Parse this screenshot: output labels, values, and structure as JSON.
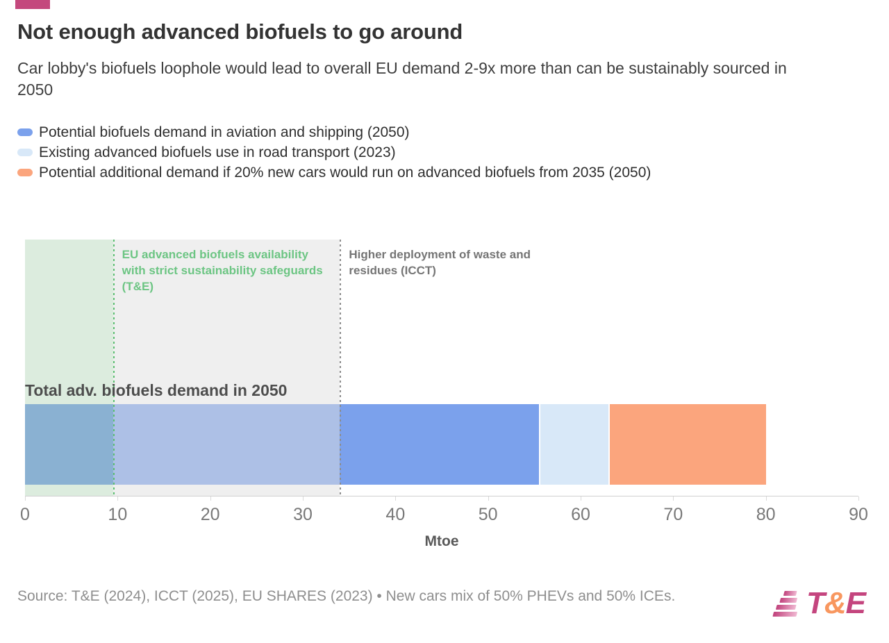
{
  "header": {
    "accent_color": "#c4487d",
    "title": "Not enough advanced biofuels to go around",
    "subtitle": "Car lobby's biofuels loophole would lead to overall EU demand 2-9x more than can be sustainably sourced in 2050"
  },
  "chart_data": {
    "type": "bar",
    "orientation": "horizontal",
    "title": "Not enough advanced biofuels to go around",
    "subtitle": "Car lobby's biofuels loophole would lead to overall EU demand 2-9x more than can be sustainably sourced in 2050",
    "bar_label": "Total adv. biofuels demand in 2050",
    "xlabel": "Mtoe",
    "xlim": [
      0,
      90
    ],
    "ticks": [
      0,
      10,
      20,
      30,
      40,
      50,
      60,
      70,
      80,
      90
    ],
    "grid": "off",
    "legend_position": "top-left",
    "series": [
      {
        "name": "Potential biofuels demand in aviation and shipping (2050)",
        "value": 55.5,
        "color": "#7ba1ec"
      },
      {
        "name": "Existing advanced biofuels use in road transport (2023)",
        "value": 7.5,
        "color": "#d8e8f8"
      },
      {
        "name": "Potential additional demand if 20% new cars would run on advanced biofuels from 2035 (2050)",
        "value": 17,
        "color": "#fba57d"
      }
    ],
    "total": 80,
    "reference_bands": [
      {
        "label": "EU advanced biofuels availability with strict sustainability safeguards (T&E)",
        "from": 0,
        "to": 9.5,
        "fill": "rgba(164,205,169,0.38)",
        "line_color": "#5bbe70",
        "text_color": "#6cc583"
      },
      {
        "label": "Higher deployment of waste and residues (ICCT)",
        "from": 9.5,
        "to": 34,
        "fill": "rgba(224,224,224,0.5)",
        "line_color": "#8c8c8c",
        "text_color": "#757575"
      }
    ]
  },
  "footer": {
    "source": "Source: T&E (2024), ICCT (2025), EU SHARES (2023) • New cars mix of 50% PHEVs and 50% ICEs.",
    "logo": {
      "t": "T",
      "amp": "&",
      "e": "E"
    }
  }
}
